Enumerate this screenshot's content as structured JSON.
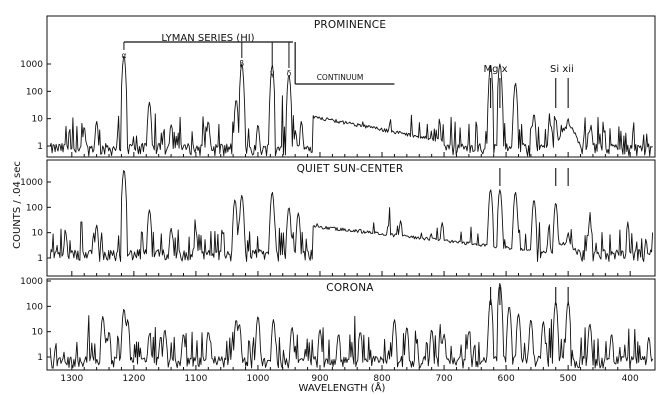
{
  "chart_data": {
    "type": "line",
    "ylabel": "COUNTS / .04 sec",
    "xlabel": "WAVELENGTH (Å)",
    "x_ticks": [
      1300,
      1200,
      1100,
      1000,
      900,
      800,
      700,
      600,
      500,
      400
    ],
    "xlim": [
      1340,
      360
    ],
    "y_scale": "log",
    "y_ticks": [
      "1",
      "10",
      "100",
      "1000"
    ],
    "grid": false,
    "panels": [
      {
        "name": "PROMINENCE",
        "ylim": [
          0.5,
          8000
        ],
        "base": 0.7,
        "continuum": {
          "edge": 912,
          "peak": 12,
          "end": 700,
          "end_value": 1.5
        },
        "bump": {
          "center": 500,
          "height": 5,
          "width": 15
        },
        "lines": [
          {
            "x": 1216,
            "y": 2000
          },
          {
            "x": 1175,
            "y": 40
          },
          {
            "x": 1026,
            "y": 1000
          },
          {
            "x": 1035,
            "y": 50
          },
          {
            "x": 977,
            "y": 900
          },
          {
            "x": 950,
            "y": 400
          },
          {
            "x": 1280,
            "y": 5
          },
          {
            "x": 1260,
            "y": 8
          },
          {
            "x": 1140,
            "y": 6
          },
          {
            "x": 1080,
            "y": 8
          },
          {
            "x": 1000,
            "y": 6
          },
          {
            "x": 930,
            "y": 8
          },
          {
            "x": 625,
            "y": 900
          },
          {
            "x": 610,
            "y": 1000
          },
          {
            "x": 585,
            "y": 200
          },
          {
            "x": 555,
            "y": 15
          },
          {
            "x": 530,
            "y": 8
          },
          {
            "x": 520,
            "y": 10
          },
          {
            "x": 500,
            "y": 10
          },
          {
            "x": 465,
            "y": 4
          }
        ]
      },
      {
        "name": "QUIET SUN-CENTER",
        "ylim": [
          0.5,
          8000
        ],
        "base": 1.2,
        "continuum": {
          "edge": 912,
          "peak": 18,
          "end": 560,
          "end_value": 2
        },
        "bump": {
          "center": 505,
          "height": 4,
          "width": 20
        },
        "lines": [
          {
            "x": 1216,
            "y": 3000
          },
          {
            "x": 1310,
            "y": 10
          },
          {
            "x": 1260,
            "y": 20
          },
          {
            "x": 1175,
            "y": 80
          },
          {
            "x": 1140,
            "y": 15
          },
          {
            "x": 1100,
            "y": 12
          },
          {
            "x": 1037,
            "y": 200
          },
          {
            "x": 1026,
            "y": 300
          },
          {
            "x": 977,
            "y": 400
          },
          {
            "x": 950,
            "y": 100
          },
          {
            "x": 935,
            "y": 60
          },
          {
            "x": 835,
            "y": 15
          },
          {
            "x": 790,
            "y": 20
          },
          {
            "x": 770,
            "y": 30
          },
          {
            "x": 703,
            "y": 25
          },
          {
            "x": 625,
            "y": 500
          },
          {
            "x": 610,
            "y": 500
          },
          {
            "x": 585,
            "y": 400
          },
          {
            "x": 555,
            "y": 200
          },
          {
            "x": 520,
            "y": 150
          },
          {
            "x": 500,
            "y": 10
          },
          {
            "x": 465,
            "y": 30
          }
        ]
      },
      {
        "name": "CORONA",
        "ylim": [
          0.5,
          8000
        ],
        "base": 0.6,
        "continuum": null,
        "bump": null,
        "lines": [
          {
            "x": 1250,
            "y": 40
          },
          {
            "x": 1240,
            "y": 10
          },
          {
            "x": 1216,
            "y": 80
          },
          {
            "x": 1210,
            "y": 30
          },
          {
            "x": 1175,
            "y": 8
          },
          {
            "x": 1150,
            "y": 12
          },
          {
            "x": 1120,
            "y": 8
          },
          {
            "x": 1080,
            "y": 10
          },
          {
            "x": 1035,
            "y": 30
          },
          {
            "x": 1030,
            "y": 20
          },
          {
            "x": 1000,
            "y": 40
          },
          {
            "x": 975,
            "y": 30
          },
          {
            "x": 945,
            "y": 15
          },
          {
            "x": 900,
            "y": 12
          },
          {
            "x": 870,
            "y": 8
          },
          {
            "x": 835,
            "y": 10
          },
          {
            "x": 780,
            "y": 30
          },
          {
            "x": 760,
            "y": 15
          },
          {
            "x": 720,
            "y": 12
          },
          {
            "x": 700,
            "y": 8
          },
          {
            "x": 660,
            "y": 10
          },
          {
            "x": 625,
            "y": 200
          },
          {
            "x": 610,
            "y": 800
          },
          {
            "x": 595,
            "y": 100
          },
          {
            "x": 580,
            "y": 50
          },
          {
            "x": 560,
            "y": 30
          },
          {
            "x": 540,
            "y": 25
          },
          {
            "x": 520,
            "y": 150
          },
          {
            "x": 500,
            "y": 150
          },
          {
            "x": 465,
            "y": 20
          },
          {
            "x": 430,
            "y": 8
          },
          {
            "x": 370,
            "y": 6
          }
        ]
      }
    ],
    "annotations": {
      "lyman": {
        "label": "LYMAN SERIES (HI)",
        "lines": [
          1216,
          1026,
          977,
          950
        ],
        "labels": [
          "α",
          "β",
          "γ",
          "δ"
        ]
      },
      "continuum_label": "CONTINUUM",
      "ion_labels": [
        {
          "text": "Mg x",
          "x": 617
        },
        {
          "text": "Si xii",
          "x": 510
        }
      ],
      "markers": [
        {
          "panel": 0,
          "x": [
            625,
            610,
            520,
            500
          ]
        },
        {
          "panel": 1,
          "x": [
            610,
            520,
            500
          ]
        },
        {
          "panel": 2,
          "x": [
            625,
            610,
            520,
            500
          ]
        }
      ]
    }
  }
}
